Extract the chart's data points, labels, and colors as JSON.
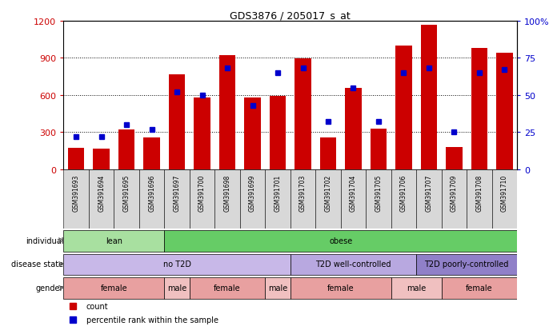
{
  "title": "GDS3876 / 205017_s_at",
  "samples": [
    "GSM391693",
    "GSM391694",
    "GSM391695",
    "GSM391696",
    "GSM391697",
    "GSM391700",
    "GSM391698",
    "GSM391699",
    "GSM391701",
    "GSM391703",
    "GSM391702",
    "GSM391704",
    "GSM391705",
    "GSM391706",
    "GSM391707",
    "GSM391709",
    "GSM391708",
    "GSM391710"
  ],
  "counts": [
    170,
    165,
    320,
    260,
    770,
    580,
    920,
    580,
    590,
    895,
    260,
    660,
    330,
    1000,
    1170,
    180,
    980,
    940
  ],
  "percentiles": [
    22,
    22,
    30,
    27,
    52,
    50,
    68,
    43,
    65,
    68,
    32,
    55,
    32,
    65,
    68,
    25,
    65,
    67
  ],
  "ylim_left": [
    0,
    1200
  ],
  "ylim_right": [
    0,
    100
  ],
  "yticks_left": [
    0,
    300,
    600,
    900,
    1200
  ],
  "yticks_right": [
    0,
    25,
    50,
    75,
    100
  ],
  "bar_color": "#cc0000",
  "dot_color": "#0000cc",
  "individual_groups": [
    {
      "label": "lean",
      "start": 0,
      "end": 4,
      "color": "#a8e0a0"
    },
    {
      "label": "obese",
      "start": 4,
      "end": 18,
      "color": "#66cc66"
    }
  ],
  "disease_groups": [
    {
      "label": "no T2D",
      "start": 0,
      "end": 9,
      "color": "#c8b8e8"
    },
    {
      "label": "T2D well-controlled",
      "start": 9,
      "end": 14,
      "color": "#b8a8e0"
    },
    {
      "label": "T2D poorly-controlled",
      "start": 14,
      "end": 18,
      "color": "#9080c8"
    }
  ],
  "gender_groups": [
    {
      "label": "female",
      "start": 0,
      "end": 4,
      "color": "#e8a0a0"
    },
    {
      "label": "male",
      "start": 4,
      "end": 5,
      "color": "#f0c0c0"
    },
    {
      "label": "female",
      "start": 5,
      "end": 8,
      "color": "#e8a0a0"
    },
    {
      "label": "male",
      "start": 8,
      "end": 9,
      "color": "#f0c0c0"
    },
    {
      "label": "female",
      "start": 9,
      "end": 13,
      "color": "#e8a0a0"
    },
    {
      "label": "male",
      "start": 13,
      "end": 15,
      "color": "#f0c0c0"
    },
    {
      "label": "female",
      "start": 15,
      "end": 18,
      "color": "#e8a0a0"
    }
  ],
  "row_labels": [
    "individual",
    "disease state",
    "gender"
  ],
  "legend_items": [
    {
      "label": "count",
      "color": "#cc0000"
    },
    {
      "label": "percentile rank within the sample",
      "color": "#0000cc"
    }
  ]
}
